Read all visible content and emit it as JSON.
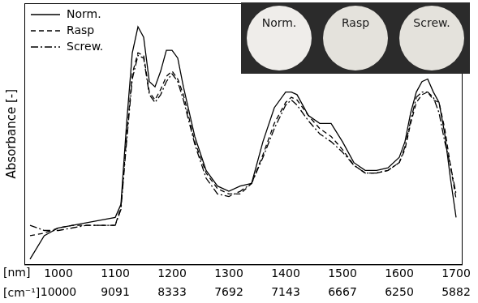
{
  "chart_data": {
    "type": "line",
    "y_label": "Absorbance [-]",
    "x_label": "[nm]",
    "x2_label": "[cm⁻¹]",
    "annotations": [
      "Norm.",
      "Rasp",
      "Screw."
    ],
    "x": [
      950,
      975,
      1000,
      1025,
      1050,
      1075,
      1100,
      1110,
      1120,
      1130,
      1140,
      1150,
      1160,
      1170,
      1180,
      1190,
      1200,
      1210,
      1220,
      1240,
      1260,
      1280,
      1300,
      1320,
      1340,
      1360,
      1380,
      1400,
      1410,
      1420,
      1440,
      1460,
      1480,
      1500,
      1520,
      1540,
      1560,
      1580,
      1600,
      1610,
      1620,
      1630,
      1640,
      1650,
      1660,
      1670,
      1680,
      1690,
      1700
    ],
    "series": [
      {
        "name": "Norm.",
        "color": "#000000",
        "line_style": "solid",
        "values": [
          0.02,
          0.11,
          0.14,
          0.15,
          0.16,
          0.17,
          0.18,
          0.23,
          0.54,
          0.81,
          0.91,
          0.87,
          0.7,
          0.68,
          0.74,
          0.82,
          0.82,
          0.79,
          0.68,
          0.49,
          0.36,
          0.3,
          0.28,
          0.3,
          0.31,
          0.47,
          0.6,
          0.66,
          0.66,
          0.65,
          0.57,
          0.54,
          0.54,
          0.47,
          0.39,
          0.36,
          0.36,
          0.37,
          0.41,
          0.47,
          0.58,
          0.66,
          0.7,
          0.71,
          0.66,
          0.62,
          0.5,
          0.33,
          0.18
        ]
      },
      {
        "name": "Rasp",
        "color": "#000000",
        "line_style": "dashed",
        "values": [
          0.11,
          0.12,
          0.14,
          0.15,
          0.15,
          0.15,
          0.15,
          0.22,
          0.49,
          0.73,
          0.81,
          0.8,
          0.66,
          0.63,
          0.67,
          0.72,
          0.74,
          0.71,
          0.65,
          0.47,
          0.35,
          0.29,
          0.27,
          0.27,
          0.31,
          0.42,
          0.54,
          0.62,
          0.64,
          0.63,
          0.57,
          0.52,
          0.49,
          0.44,
          0.38,
          0.35,
          0.35,
          0.36,
          0.39,
          0.44,
          0.54,
          0.62,
          0.65,
          0.66,
          0.63,
          0.62,
          0.52,
          0.38,
          0.25
        ]
      },
      {
        "name": "Screw.",
        "color": "#000000",
        "line_style": "dashdot",
        "values": [
          0.15,
          0.13,
          0.13,
          0.14,
          0.15,
          0.15,
          0.15,
          0.21,
          0.47,
          0.71,
          0.8,
          0.79,
          0.65,
          0.62,
          0.65,
          0.7,
          0.73,
          0.7,
          0.63,
          0.46,
          0.33,
          0.27,
          0.26,
          0.28,
          0.31,
          0.41,
          0.52,
          0.61,
          0.63,
          0.61,
          0.55,
          0.5,
          0.47,
          0.43,
          0.38,
          0.35,
          0.35,
          0.36,
          0.39,
          0.45,
          0.55,
          0.64,
          0.66,
          0.66,
          0.64,
          0.58,
          0.47,
          0.38,
          0.27
        ]
      }
    ],
    "xlim": [
      940,
      1710
    ],
    "xticks": [
      1000,
      1100,
      1200,
      1300,
      1400,
      1500,
      1600,
      1700
    ],
    "x2lim": [
      940,
      1710
    ],
    "x2ticks": [
      {
        "value": 1000,
        "label": "10000"
      },
      {
        "value": 1100,
        "label": "9091"
      },
      {
        "value": 1200,
        "label": "8333"
      },
      {
        "value": 1300,
        "label": "7692"
      },
      {
        "value": 1400,
        "label": "7143"
      },
      {
        "value": 1500,
        "label": "6667"
      },
      {
        "value": 1600,
        "label": "6250"
      },
      {
        "value": 1700,
        "label": "5882"
      }
    ],
    "ylim": [
      0,
      1
    ],
    "tick_labels": "x",
    "grid": false,
    "legend": "top-left"
  }
}
